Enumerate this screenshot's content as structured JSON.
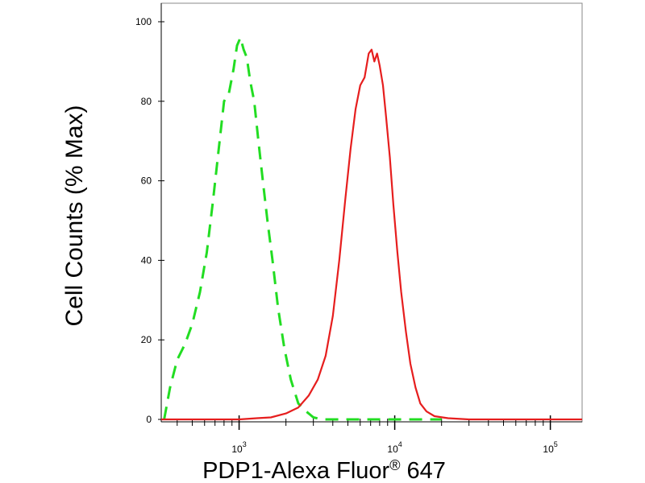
{
  "chart_data": {
    "type": "line",
    "title": "",
    "xlabel": "PDP1-Alexa Fluor",
    "xlabel_superscript": "®",
    "xlabel_suffix": " 647",
    "ylabel": "Cell Counts (% Max)",
    "xscale": "log",
    "xlim": [
      316,
      160000
    ],
    "ylim": [
      0,
      100
    ],
    "x_ticks": [
      {
        "value": 1000,
        "base": "10",
        "exp": "3"
      },
      {
        "value": 10000,
        "base": "10",
        "exp": "4"
      },
      {
        "value": 100000,
        "base": "10",
        "exp": "5"
      }
    ],
    "y_ticks": [
      {
        "value": 0,
        "label": "0"
      },
      {
        "value": 20,
        "label": "20"
      },
      {
        "value": 40,
        "label": "40"
      },
      {
        "value": 60,
        "label": "60"
      },
      {
        "value": 80,
        "label": "80"
      },
      {
        "value": 100,
        "label": "100"
      }
    ],
    "grid": false,
    "series": [
      {
        "color": "#22dd22",
        "style": "dashed",
        "x": [
          330,
          360,
          400,
          450,
          500,
          560,
          620,
          680,
          740,
          800,
          860,
          920,
          970,
          1020,
          1070,
          1120,
          1180,
          1250,
          1330,
          1420,
          1520,
          1640,
          1780,
          1950,
          2150,
          2400,
          2700,
          3000,
          3400,
          4000,
          6000,
          20000
        ],
        "y": [
          0,
          8,
          15,
          19,
          24,
          32,
          42,
          55,
          68,
          80,
          82,
          88,
          94,
          96,
          93,
          91,
          85,
          80,
          70,
          60,
          50,
          40,
          28,
          18,
          10,
          4,
          2,
          0.5,
          0,
          0,
          0,
          0
        ]
      },
      {
        "color": "#e61e1e",
        "style": "solid",
        "x": [
          316,
          1000,
          1300,
          1600,
          2000,
          2400,
          2800,
          3200,
          3600,
          4000,
          4400,
          4800,
          5200,
          5600,
          6000,
          6400,
          6800,
          7100,
          7400,
          7700,
          8000,
          8400,
          8800,
          9300,
          9800,
          10400,
          11000,
          11800,
          12600,
          13600,
          14600,
          16000,
          18000,
          22000,
          30000,
          60000,
          160000
        ],
        "y": [
          0,
          0,
          0.3,
          0.5,
          1.5,
          3,
          6,
          10,
          16,
          26,
          40,
          55,
          68,
          78,
          84,
          86,
          92,
          93,
          90,
          92,
          89,
          84,
          76,
          66,
          54,
          42,
          32,
          22,
          14,
          8,
          4,
          2,
          0.8,
          0.3,
          0,
          0,
          0
        ]
      }
    ]
  }
}
